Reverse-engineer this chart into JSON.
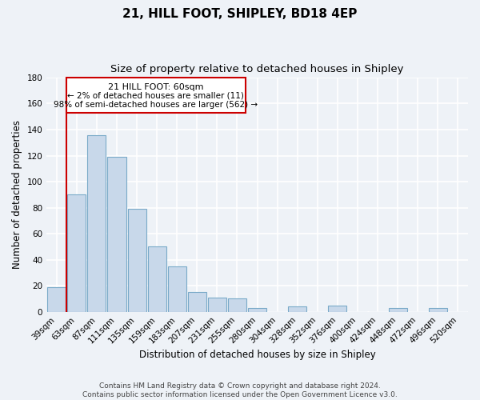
{
  "title": "21, HILL FOOT, SHIPLEY, BD18 4EP",
  "subtitle": "Size of property relative to detached houses in Shipley",
  "xlabel": "Distribution of detached houses by size in Shipley",
  "ylabel": "Number of detached properties",
  "bar_color": "#c8d8ea",
  "bar_edge_color": "#7aaac8",
  "categories": [
    "39sqm",
    "63sqm",
    "87sqm",
    "111sqm",
    "135sqm",
    "159sqm",
    "183sqm",
    "207sqm",
    "231sqm",
    "255sqm",
    "280sqm",
    "304sqm",
    "328sqm",
    "352sqm",
    "376sqm",
    "400sqm",
    "424sqm",
    "448sqm",
    "472sqm",
    "496sqm",
    "520sqm"
  ],
  "values": [
    19,
    90,
    136,
    119,
    79,
    50,
    35,
    15,
    11,
    10,
    3,
    0,
    4,
    0,
    5,
    0,
    0,
    3,
    0,
    3,
    0
  ],
  "ylim": [
    0,
    180
  ],
  "yticks": [
    0,
    20,
    40,
    60,
    80,
    100,
    120,
    140,
    160,
    180
  ],
  "marker_color": "#cc0000",
  "annotation_title": "21 HILL FOOT: 60sqm",
  "annotation_line1": "← 2% of detached houses are smaller (11)",
  "annotation_line2": "98% of semi-detached houses are larger (562) →",
  "footer1": "Contains HM Land Registry data © Crown copyright and database right 2024.",
  "footer2": "Contains public sector information licensed under the Open Government Licence v3.0.",
  "background_color": "#eef2f7",
  "grid_color": "#ffffff",
  "title_fontsize": 11,
  "subtitle_fontsize": 9.5,
  "axis_label_fontsize": 8.5,
  "tick_fontsize": 7.5,
  "footer_fontsize": 6.5,
  "ann_title_fontsize": 8,
  "ann_text_fontsize": 7.5
}
